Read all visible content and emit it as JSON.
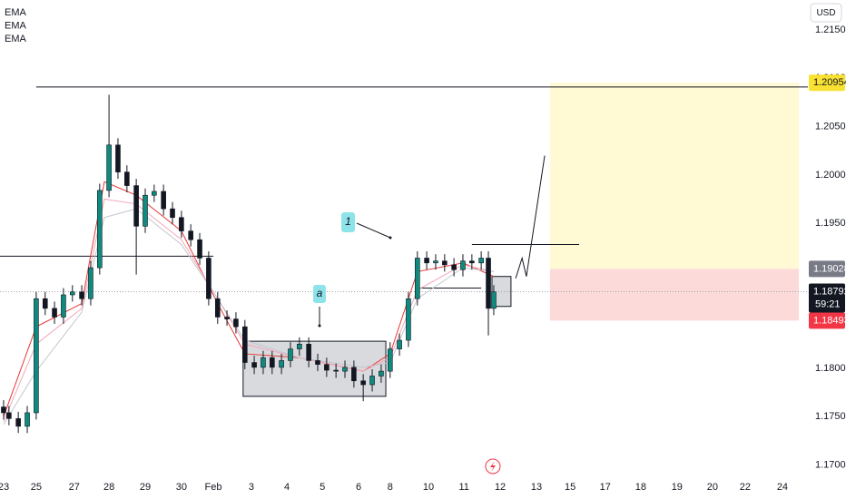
{
  "chart_data": {
    "type": "candlestick",
    "y_axis_label": "USD",
    "xlim": [
      -0.1,
      22.43
    ],
    "ylim": [
      1.1692,
      1.2181
    ],
    "grid": false,
    "xticks": [
      {
        "value": 0.0,
        "label": "23"
      },
      {
        "value": 0.91,
        "label": "25"
      },
      {
        "value": 1.97,
        "label": "27"
      },
      {
        "value": 2.94,
        "label": "28"
      },
      {
        "value": 3.95,
        "label": "29"
      },
      {
        "value": 4.96,
        "label": "30"
      },
      {
        "value": 5.85,
        "label": "Feb"
      },
      {
        "value": 6.91,
        "label": "3"
      },
      {
        "value": 7.9,
        "label": "4"
      },
      {
        "value": 8.89,
        "label": "5"
      },
      {
        "value": 9.9,
        "label": "6"
      },
      {
        "value": 10.78,
        "label": "8"
      },
      {
        "value": 11.85,
        "label": "10"
      },
      {
        "value": 12.84,
        "label": "11"
      },
      {
        "value": 13.85,
        "label": "12"
      },
      {
        "value": 14.86,
        "label": "13"
      },
      {
        "value": 15.8,
        "label": "15"
      },
      {
        "value": 16.78,
        "label": "17"
      },
      {
        "value": 17.77,
        "label": "18"
      },
      {
        "value": 18.78,
        "label": "19"
      },
      {
        "value": 19.77,
        "label": "20"
      },
      {
        "value": 20.68,
        "label": "22"
      },
      {
        "value": 21.72,
        "label": "24"
      }
    ],
    "yticks": [
      {
        "value": 1.215,
        "label": "1.21500"
      },
      {
        "value": 1.21,
        "label": "1.21000"
      },
      {
        "value": 1.205,
        "label": "1.20500"
      },
      {
        "value": 1.2,
        "label": "1.20000"
      },
      {
        "value": 1.195,
        "label": "1.19500"
      },
      {
        "value": 1.19,
        "label": "1.19000"
      },
      {
        "value": 1.185,
        "label": "1.18500"
      },
      {
        "value": 1.18,
        "label": "1.18000"
      },
      {
        "value": 1.175,
        "label": "1.17500"
      },
      {
        "value": 1.17,
        "label": "1.17000"
      }
    ],
    "candles": {
      "up_color": "#0f8a7e",
      "down_color": "#131722",
      "x": [
        0.0,
        0.15,
        0.41,
        0.66,
        0.91,
        1.16,
        1.42,
        1.67,
        1.92,
        2.18,
        2.43,
        2.68,
        2.94,
        3.19,
        3.44,
        3.7,
        3.95,
        4.2,
        4.46,
        4.71,
        4.96,
        5.22,
        5.47,
        5.72,
        5.97,
        6.23,
        6.48,
        6.73,
        6.99,
        7.24,
        7.49,
        7.75,
        8.0,
        8.25,
        8.51,
        8.76,
        9.01,
        9.27,
        9.52,
        9.77,
        10.03,
        10.28,
        10.53,
        10.78,
        11.04,
        11.29,
        11.54,
        11.8,
        12.05,
        12.3,
        12.56,
        12.81,
        13.06,
        13.32,
        13.52,
        13.67
      ],
      "open": [
        1.176,
        1.1754,
        1.1748,
        1.174,
        1.1754,
        1.1872,
        1.1862,
        1.1853,
        1.1876,
        1.1879,
        1.1872,
        1.1904,
        1.1984,
        1.2031,
        1.2003,
        1.1989,
        1.1947,
        1.1979,
        1.1983,
        1.1965,
        1.1956,
        1.1942,
        1.1933,
        1.1914,
        1.1872,
        1.1853,
        1.1851,
        1.1843,
        1.1806,
        1.1801,
        1.1811,
        1.1801,
        1.1808,
        1.182,
        1.1825,
        1.1808,
        1.1804,
        1.1798,
        1.1797,
        1.1801,
        1.1787,
        1.1783,
        1.1792,
        1.1797,
        1.182,
        1.1829,
        1.1872,
        1.1914,
        1.1909,
        1.1911,
        1.1907,
        1.1902,
        1.1911,
        1.1909,
        1.1914,
        1.1862
      ],
      "high": [
        1.1767,
        1.1761,
        1.1755,
        1.1761,
        1.1879,
        1.1879,
        1.1869,
        1.1883,
        1.1886,
        1.1886,
        1.1911,
        1.1991,
        1.2083,
        1.2038,
        1.201,
        1.1996,
        1.1986,
        1.199,
        1.199,
        1.1972,
        1.1963,
        1.1949,
        1.194,
        1.1921,
        1.1879,
        1.186,
        1.1858,
        1.185,
        1.1813,
        1.1818,
        1.1818,
        1.1815,
        1.1827,
        1.1832,
        1.1832,
        1.1815,
        1.1811,
        1.1805,
        1.1808,
        1.1808,
        1.1794,
        1.1799,
        1.1804,
        1.1827,
        1.1836,
        1.1879,
        1.1921,
        1.1921,
        1.1918,
        1.1918,
        1.1914,
        1.1918,
        1.1918,
        1.1921,
        1.1921,
        1.1886
      ],
      "low": [
        1.1747,
        1.1741,
        1.1733,
        1.1733,
        1.1747,
        1.1855,
        1.1846,
        1.1846,
        1.1869,
        1.1865,
        1.1865,
        1.1897,
        1.1977,
        1.1996,
        1.1982,
        1.1897,
        1.194,
        1.1972,
        1.1958,
        1.1949,
        1.1935,
        1.1926,
        1.1907,
        1.1865,
        1.1846,
        1.1844,
        1.1836,
        1.1799,
        1.1794,
        1.1794,
        1.1794,
        1.1794,
        1.1801,
        1.1813,
        1.1801,
        1.1797,
        1.1791,
        1.179,
        1.179,
        1.178,
        1.1766,
        1.1776,
        1.1785,
        1.179,
        1.1813,
        1.1822,
        1.1865,
        1.1902,
        1.1902,
        1.19,
        1.1895,
        1.1895,
        1.1902,
        1.1902,
        1.1834,
        1.1855
      ],
      "close": [
        1.1754,
        1.1748,
        1.174,
        1.1754,
        1.1872,
        1.1862,
        1.1853,
        1.1876,
        1.1879,
        1.1872,
        1.1904,
        1.1984,
        1.2031,
        1.2003,
        1.1989,
        1.1947,
        1.1979,
        1.1983,
        1.1965,
        1.1956,
        1.1942,
        1.1933,
        1.1914,
        1.1872,
        1.1853,
        1.1851,
        1.1843,
        1.1806,
        1.1801,
        1.1811,
        1.1801,
        1.1808,
        1.182,
        1.1825,
        1.1808,
        1.1804,
        1.1798,
        1.1797,
        1.1801,
        1.1787,
        1.1783,
        1.1792,
        1.1797,
        1.182,
        1.1829,
        1.1872,
        1.1914,
        1.1909,
        1.1911,
        1.1907,
        1.1902,
        1.1911,
        1.1909,
        1.1914,
        1.1862,
        1.1879
      ]
    },
    "series": [
      {
        "name": "EMA",
        "color": "#e53935",
        "x": [
          0.0,
          0.91,
          2.18,
          2.81,
          3.7,
          4.96,
          5.97,
          6.73,
          8.25,
          10.03,
          10.78,
          11.54,
          12.81,
          13.67
        ],
        "values": [
          1.175,
          1.1843,
          1.1867,
          1.1993,
          1.1979,
          1.1942,
          1.1867,
          1.1815,
          1.1811,
          1.1797,
          1.1815,
          1.19,
          1.1909,
          1.1895
        ]
      },
      {
        "name": "EMA",
        "color": "#f4a6b8",
        "x": [
          0.0,
          0.91,
          2.18,
          2.81,
          3.7,
          4.96,
          5.97,
          6.73,
          8.25,
          10.03,
          10.78,
          11.54,
          12.81,
          13.67
        ],
        "values": [
          1.1745,
          1.1825,
          1.1862,
          1.1975,
          1.197,
          1.1933,
          1.1872,
          1.1825,
          1.1811,
          1.1797,
          1.1811,
          1.1881,
          1.1907,
          1.19
        ]
      },
      {
        "name": "EMA",
        "color": "#c3c6cf",
        "x": [
          0.0,
          0.91,
          2.18,
          2.81,
          3.7,
          4.96,
          5.97,
          6.73,
          8.25,
          10.03,
          10.78,
          11.54,
          12.81,
          13.67
        ],
        "values": [
          1.1742,
          1.1797,
          1.1858,
          1.1956,
          1.1965,
          1.1928,
          1.1872,
          1.1829,
          1.1811,
          1.1801,
          1.1806,
          1.1872,
          1.1904,
          1.19
        ]
      }
    ],
    "position": {
      "x_start": 15.24,
      "x_end": 22.18,
      "target": 1.20954,
      "entry": 1.19028,
      "stop": 1.18493,
      "profit_color": "#fff9d4",
      "loss_color": "#fcdada",
      "target_color": "#f9e231",
      "entry_color": "#787b86",
      "stop_color": "#f23645"
    },
    "current_price": {
      "value": 1.18792,
      "countdown": "59:21",
      "color": "#131722"
    },
    "levels": [
      {
        "price": 1.2091,
        "x": [
          0.91,
          22.43
        ]
      },
      {
        "price": 1.1916,
        "x": [
          -0.1,
          5.85
        ]
      },
      {
        "price": 1.1928,
        "x": [
          13.06,
          16.05
        ]
      },
      {
        "price": 1.1883,
        "x": [
          11.54,
          13.32
        ]
      }
    ],
    "boxes": [
      {
        "x": [
          6.68,
          10.66
        ],
        "price": [
          1.1828,
          1.1771
        ]
      },
      {
        "x": [
          13.62,
          14.15
        ],
        "price": [
          1.1895,
          1.1864
        ]
      }
    ],
    "path": {
      "x": [
        14.28,
        14.46,
        14.58,
        15.09
      ],
      "price": [
        1.1893,
        1.1914,
        1.1895,
        1.202
      ]
    },
    "annotations": [
      {
        "text": "1"
      },
      {
        "text": "a"
      }
    ]
  }
}
